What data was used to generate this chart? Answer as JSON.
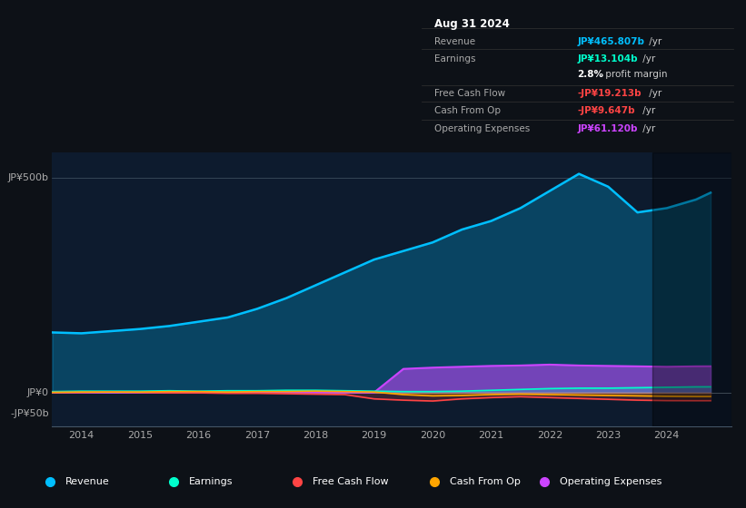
{
  "background_color": "#0d1117",
  "chart_bg_color": "#0d1b2e",
  "ylabel_500": "JP¥500b",
  "ylabel_0": "JP¥0",
  "ylabel_neg50": "-JP¥50b",
  "years": [
    2013.5,
    2014.0,
    2014.5,
    2015.0,
    2015.5,
    2016.0,
    2016.5,
    2017.0,
    2017.5,
    2018.0,
    2018.5,
    2019.0,
    2019.5,
    2020.0,
    2020.5,
    2021.0,
    2021.5,
    2022.0,
    2022.5,
    2023.0,
    2023.5,
    2024.0,
    2024.5,
    2024.75
  ],
  "revenue": [
    140,
    138,
    143,
    148,
    155,
    165,
    175,
    195,
    220,
    250,
    280,
    310,
    330,
    350,
    380,
    400,
    430,
    470,
    510,
    480,
    420,
    430,
    450,
    466
  ],
  "earnings": [
    2,
    3,
    3,
    3,
    4,
    3,
    4,
    4,
    5,
    5,
    4,
    3,
    2,
    2,
    3,
    5,
    7,
    9,
    10,
    10,
    11,
    12,
    13,
    13.1
  ],
  "free_cash_flow": [
    0,
    0,
    1,
    0,
    -1,
    -1,
    -2,
    -2,
    -3,
    -4,
    -5,
    -15,
    -18,
    -20,
    -15,
    -12,
    -10,
    -12,
    -14,
    -16,
    -18,
    -19,
    -19.2,
    -19.2
  ],
  "cash_from_op": [
    0,
    1,
    1,
    1,
    2,
    2,
    1,
    2,
    2,
    3,
    2,
    1,
    -5,
    -8,
    -7,
    -5,
    -4,
    -5,
    -6,
    -7,
    -8,
    -9,
    -9.6,
    -9.6
  ],
  "operating_expenses": [
    0,
    0,
    0,
    0,
    0,
    0,
    0,
    0,
    0,
    0,
    0,
    0,
    55,
    58,
    60,
    62,
    63,
    65,
    63,
    62,
    61,
    60,
    61,
    61.1
  ],
  "revenue_color": "#00bfff",
  "earnings_color": "#00ffcc",
  "fcf_color": "#ff4444",
  "cashop_color": "#ffa500",
  "opex_color": "#cc44ff",
  "infobox_title": "Aug 31 2024",
  "infobox_rows": [
    {
      "label": "Revenue",
      "value": "JP¥465.807b",
      "suffix": " /yr",
      "value_color": "#00bfff"
    },
    {
      "label": "Earnings",
      "value": "JP¥13.104b",
      "suffix": " /yr",
      "value_color": "#00ffcc"
    },
    {
      "label": "",
      "value": "2.8%",
      "suffix": " profit margin",
      "value_color": "#ffffff"
    },
    {
      "label": "Free Cash Flow",
      "value": "-JP¥19.213b",
      "suffix": " /yr",
      "value_color": "#ff4444"
    },
    {
      "label": "Cash From Op",
      "value": "-JP¥9.647b",
      "suffix": " /yr",
      "value_color": "#ff4444"
    },
    {
      "label": "Operating Expenses",
      "value": "JP¥61.120b",
      "suffix": " /yr",
      "value_color": "#cc44ff"
    }
  ],
  "legend_items": [
    {
      "label": "Revenue",
      "color": "#00bfff"
    },
    {
      "label": "Earnings",
      "color": "#00ffcc"
    },
    {
      "label": "Free Cash Flow",
      "color": "#ff4444"
    },
    {
      "label": "Cash From Op",
      "color": "#ffa500"
    },
    {
      "label": "Operating Expenses",
      "color": "#cc44ff"
    }
  ]
}
